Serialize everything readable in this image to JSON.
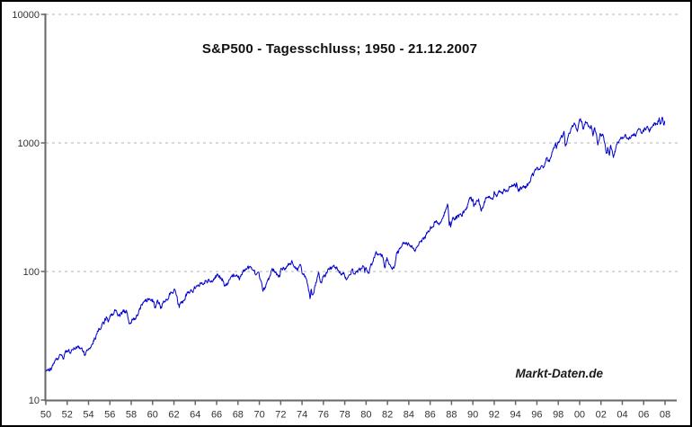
{
  "colors": {
    "line": "#0000cc",
    "grid": "#b3b3b3",
    "axis": "#666666",
    "tick_text": "#333333",
    "title_text": "#111111",
    "border": "#000000",
    "background": "#ffffff"
  },
  "chart_data": {
    "type": "line",
    "title": "S&P500 - Tagesschluss; 1950 - 21.12.2007",
    "watermark": "Markt-Daten.de",
    "grid": "horizontal-dashed",
    "legend_position": "none",
    "x_axis": {
      "tick_years": [
        1950,
        1952,
        1954,
        1956,
        1958,
        1960,
        1962,
        1964,
        1966,
        1968,
        1970,
        1972,
        1974,
        1976,
        1978,
        1980,
        1982,
        1984,
        1986,
        1988,
        1990,
        1992,
        1994,
        1996,
        1998,
        2000,
        2002,
        2004,
        2006,
        2008
      ],
      "tick_labels": [
        "50",
        "52",
        "54",
        "56",
        "58",
        "60",
        "62",
        "64",
        "66",
        "68",
        "70",
        "72",
        "74",
        "76",
        "78",
        "80",
        "82",
        "84",
        "86",
        "88",
        "90",
        "92",
        "94",
        "96",
        "98",
        "00",
        "02",
        "04",
        "06",
        "08"
      ],
      "range": [
        1950,
        2008.4
      ]
    },
    "y_axis": {
      "scale": "log",
      "range": [
        10,
        10000
      ],
      "tick_values": [
        10,
        100,
        1000,
        10000
      ],
      "tick_labels": [
        "10",
        "100",
        "1000",
        "10000"
      ],
      "gridline_values": [
        100,
        1000,
        10000
      ]
    },
    "series": [
      {
        "name": "S&P500 Tagesschluss",
        "color": "#0000cc",
        "points": [
          [
            1950.0,
            16.7
          ],
          [
            1950.3,
            17.3
          ],
          [
            1950.54,
            17.7
          ],
          [
            1950.75,
            19.5
          ],
          [
            1951.0,
            20.4
          ],
          [
            1951.4,
            22.0
          ],
          [
            1951.6,
            21.3
          ],
          [
            1952.0,
            23.8
          ],
          [
            1952.35,
            23.4
          ],
          [
            1952.7,
            25.0
          ],
          [
            1953.0,
            26.6
          ],
          [
            1953.2,
            25.6
          ],
          [
            1953.7,
            22.7
          ],
          [
            1954.0,
            24.8
          ],
          [
            1954.5,
            29.2
          ],
          [
            1955.0,
            36.0
          ],
          [
            1955.5,
            41.0
          ],
          [
            1955.75,
            45.2
          ],
          [
            1955.85,
            42.5
          ],
          [
            1956.0,
            45.5
          ],
          [
            1956.6,
            49.6
          ],
          [
            1956.9,
            45.0
          ],
          [
            1957.0,
            46.7
          ],
          [
            1957.55,
            49.1
          ],
          [
            1957.8,
            39.0
          ],
          [
            1958.0,
            40.3
          ],
          [
            1958.5,
            45.0
          ],
          [
            1959.0,
            55.2
          ],
          [
            1959.6,
            60.7
          ],
          [
            1960.0,
            59.9
          ],
          [
            1960.2,
            54.0
          ],
          [
            1960.5,
            57.3
          ],
          [
            1960.8,
            52.3
          ],
          [
            1961.0,
            58.1
          ],
          [
            1961.5,
            65.0
          ],
          [
            1961.95,
            72.6
          ],
          [
            1962.2,
            69.0
          ],
          [
            1962.48,
            52.3
          ],
          [
            1962.65,
            59.0
          ],
          [
            1962.8,
            56.0
          ],
          [
            1963.0,
            63.1
          ],
          [
            1963.5,
            69.0
          ],
          [
            1964.0,
            75.0
          ],
          [
            1964.5,
            80.0
          ],
          [
            1965.0,
            84.8
          ],
          [
            1965.45,
            81.6
          ],
          [
            1965.85,
            92.6
          ],
          [
            1966.1,
            94.1
          ],
          [
            1966.4,
            86.0
          ],
          [
            1966.55,
            87.0
          ],
          [
            1966.76,
            73.2
          ],
          [
            1967.0,
            80.3
          ],
          [
            1967.4,
            91.0
          ],
          [
            1967.73,
            97.6
          ],
          [
            1967.9,
            94.0
          ],
          [
            1968.17,
            87.7
          ],
          [
            1968.5,
            100.0
          ],
          [
            1968.92,
            108.4
          ],
          [
            1969.0,
            103.9
          ],
          [
            1969.35,
            101.0
          ],
          [
            1969.55,
            97.0
          ],
          [
            1969.95,
            92.1
          ],
          [
            1970.37,
            69.3
          ],
          [
            1970.6,
            78.0
          ],
          [
            1970.85,
            84.0
          ],
          [
            1971.0,
            92.2
          ],
          [
            1971.33,
            104.8
          ],
          [
            1971.65,
            94.0
          ],
          [
            1971.87,
            90.2
          ],
          [
            1972.0,
            102.1
          ],
          [
            1972.5,
            107.0
          ],
          [
            1973.03,
            120.2
          ],
          [
            1973.3,
            108.0
          ],
          [
            1973.65,
            104.0
          ],
          [
            1973.8,
            111.0
          ],
          [
            1974.0,
            97.6
          ],
          [
            1974.2,
            93.0
          ],
          [
            1974.4,
            90.0
          ],
          [
            1974.76,
            62.3
          ],
          [
            1974.85,
            75.2
          ],
          [
            1974.93,
            65.0
          ],
          [
            1975.0,
            68.6
          ],
          [
            1975.54,
            95.6
          ],
          [
            1975.7,
            82.1
          ],
          [
            1976.0,
            90.2
          ],
          [
            1976.72,
            107.8
          ],
          [
            1977.0,
            107.5
          ],
          [
            1977.5,
            99.0
          ],
          [
            1978.0,
            95.1
          ],
          [
            1978.17,
            86.9
          ],
          [
            1978.7,
            107.0
          ],
          [
            1978.85,
            92.5
          ],
          [
            1979.0,
            96.1
          ],
          [
            1979.3,
            102.0
          ],
          [
            1979.77,
            111.3
          ],
          [
            1979.87,
            99.9
          ],
          [
            1980.0,
            107.9
          ],
          [
            1980.24,
            98.2
          ],
          [
            1980.91,
            140.5
          ],
          [
            1981.0,
            135.8
          ],
          [
            1981.3,
            132.0
          ],
          [
            1981.6,
            130.0
          ],
          [
            1981.73,
            112.8
          ],
          [
            1981.95,
            126.0
          ],
          [
            1982.0,
            122.6
          ],
          [
            1982.3,
            111.0
          ],
          [
            1982.61,
            102.4
          ],
          [
            1982.85,
            138.0
          ],
          [
            1983.0,
            140.6
          ],
          [
            1983.78,
            172.7
          ],
          [
            1984.0,
            164.9
          ],
          [
            1984.56,
            147.8
          ],
          [
            1985.0,
            167.2
          ],
          [
            1985.5,
            188.0
          ],
          [
            1986.0,
            211.3
          ],
          [
            1986.5,
            252.7
          ],
          [
            1986.74,
            229.9
          ],
          [
            1987.0,
            242.2
          ],
          [
            1987.65,
            336.8
          ],
          [
            1987.795,
            224.8
          ],
          [
            1987.86,
            245.0
          ],
          [
            1987.92,
            223.9
          ],
          [
            1988.0,
            247.1
          ],
          [
            1988.5,
            270.0
          ],
          [
            1989.0,
            277.7
          ],
          [
            1989.4,
            320.0
          ],
          [
            1989.77,
            359.8
          ],
          [
            1990.0,
            353.4
          ],
          [
            1990.08,
            323.0
          ],
          [
            1990.54,
            369.0
          ],
          [
            1990.78,
            295.5
          ],
          [
            1991.0,
            330.2
          ],
          [
            1991.35,
            380.0
          ],
          [
            1991.9,
            375.2
          ],
          [
            1992.0,
            417.1
          ],
          [
            1992.27,
            394.5
          ],
          [
            1992.6,
            415.0
          ],
          [
            1992.77,
            402.7
          ],
          [
            1993.0,
            435.7
          ],
          [
            1993.5,
            450.0
          ],
          [
            1994.0,
            466.5
          ],
          [
            1994.09,
            482.0
          ],
          [
            1994.26,
            438.9
          ],
          [
            1994.85,
            445.5
          ],
          [
            1995.0,
            459.3
          ],
          [
            1995.5,
            545.0
          ],
          [
            1996.0,
            615.9
          ],
          [
            1996.4,
            678.5
          ],
          [
            1996.56,
            626.7
          ],
          [
            1996.9,
            757.0
          ],
          [
            1997.0,
            740.7
          ],
          [
            1997.28,
            737.7
          ],
          [
            1997.6,
            950.0
          ],
          [
            1997.77,
            983.1
          ],
          [
            1997.82,
            877.0
          ],
          [
            1998.0,
            970.4
          ],
          [
            1998.3,
            1101.0
          ],
          [
            1998.54,
            1186.8
          ],
          [
            1998.66,
            957.3
          ],
          [
            1998.8,
            984.0
          ],
          [
            1999.0,
            1229.2
          ],
          [
            1999.3,
            1300.0
          ],
          [
            1999.54,
            1418.8
          ],
          [
            1999.79,
            1247.4
          ],
          [
            2000.0,
            1469.3
          ],
          [
            2000.23,
            1527.5
          ],
          [
            2000.31,
            1356.6
          ],
          [
            2000.67,
            1520.8
          ],
          [
            2000.95,
            1264.7
          ],
          [
            2001.08,
            1366.0
          ],
          [
            2001.27,
            1103.3
          ],
          [
            2001.4,
            1312.8
          ],
          [
            2001.72,
            965.8
          ],
          [
            2001.95,
            1170.0
          ],
          [
            2002.05,
            1172.5
          ],
          [
            2002.21,
            1170.3
          ],
          [
            2002.56,
            797.7
          ],
          [
            2002.64,
            962.7
          ],
          [
            2002.77,
            776.8
          ],
          [
            2002.9,
            938.9
          ],
          [
            2003.0,
            879.8
          ],
          [
            2003.19,
            800.7
          ],
          [
            2003.5,
            990.0
          ],
          [
            2003.9,
            1058.0
          ],
          [
            2004.0,
            1111.9
          ],
          [
            2004.25,
            1140.0
          ],
          [
            2004.6,
            1060.7
          ],
          [
            2004.9,
            1190.0
          ],
          [
            2005.0,
            1211.9
          ],
          [
            2005.3,
            1137.5
          ],
          [
            2005.6,
            1230.0
          ],
          [
            2005.8,
            1176.8
          ],
          [
            2006.0,
            1248.3
          ],
          [
            2006.35,
            1325.8
          ],
          [
            2006.5,
            1223.7
          ],
          [
            2006.8,
            1335.0
          ],
          [
            2007.0,
            1418.3
          ],
          [
            2007.17,
            1374.1
          ],
          [
            2007.45,
            1539.2
          ],
          [
            2007.6,
            1406.7
          ],
          [
            2007.75,
            1565.2
          ],
          [
            2007.87,
            1407.2
          ],
          [
            2007.97,
            1484.5
          ]
        ]
      }
    ]
  }
}
